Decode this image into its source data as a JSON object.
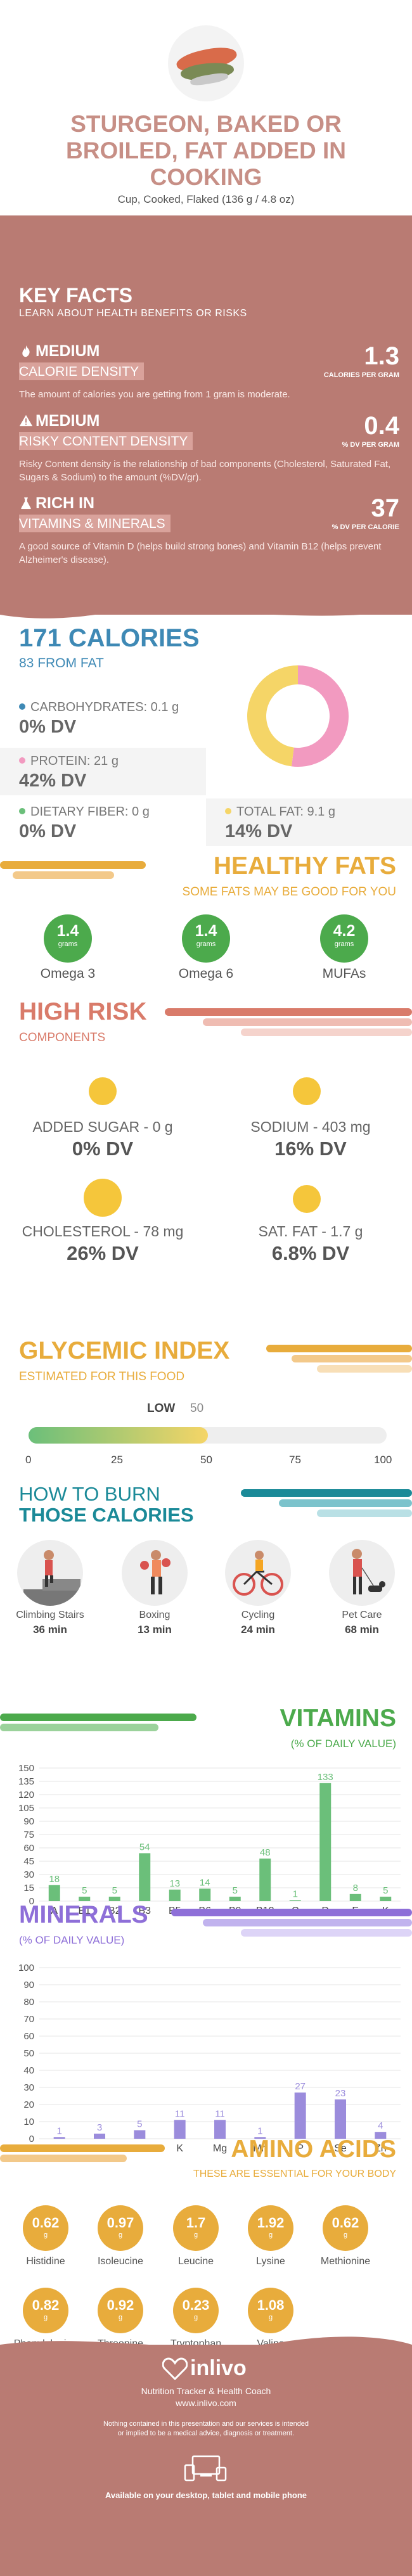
{
  "food": {
    "title": "STURGEON, BAKED OR BROILED, FAT ADDED IN COOKING",
    "serving": "Cup, Cooked, Flaked (136 g / 4.8 oz)"
  },
  "key_facts": {
    "title": "KEY FACTS",
    "subtitle": "LEARN ABOUT HEALTH BENEFITS OR RISKS",
    "items": [
      {
        "level": "MEDIUM",
        "label": "CALORIE DENSITY",
        "value": "1.3",
        "unit": "CALORIES PER GRAM",
        "description": "The amount of calories you are getting from 1 gram is moderate.",
        "icon": "flame-icon"
      },
      {
        "level": "MEDIUM",
        "label": "RISKY CONTENT DENSITY",
        "value": "0.4",
        "unit": "% DV PER GRAM",
        "description": "Risky Content density is the relationship of bad components (Cholesterol, Saturated Fat, Sugars & Sodium) to the amount (%DV/gr).",
        "icon": "warning-icon"
      },
      {
        "level": "RICH  IN",
        "label": "VITAMINS & MINERALS",
        "value": "37",
        "unit": "% DV PER CALORIE",
        "description": "A good source of Vitamin D (helps build strong bones) and Vitamin B12 (helps prevent Alzheimer's disease).",
        "icon": "flask-icon"
      }
    ]
  },
  "calories": {
    "title": "171 CALORIES",
    "from_fat": "83 FROM FAT",
    "macros": [
      {
        "label": "CARBOHYDRATES: 0.1 g",
        "dv": "0% DV",
        "color": "#3e89b5",
        "fraction": 0.0
      },
      {
        "label": "PROTEIN: 21 g",
        "dv": "42% DV",
        "color": "#f29ac0",
        "fraction": 0.52
      },
      {
        "label": "DIETARY FIBER: 0 g",
        "dv": "0% DV",
        "color": "#6bbf7a",
        "fraction": 0.0
      },
      {
        "label": "TOTAL FAT: 9.1 g",
        "dv": "14% DV",
        "color": "#f5d567",
        "fraction": 0.48
      }
    ]
  },
  "healthy_fats": {
    "title": "HEALTHY FATS",
    "subtitle": "SOME FATS MAY BE GOOD FOR YOU",
    "items": [
      {
        "value": "1.4",
        "unit": "grams",
        "name": "Omega 3"
      },
      {
        "value": "1.4",
        "unit": "grams",
        "name": "Omega 6"
      },
      {
        "value": "4.2",
        "unit": "grams",
        "name": "MUFAs"
      }
    ]
  },
  "high_risk": {
    "title": "HIGH RISK",
    "subtitle": "COMPONENTS",
    "items": [
      {
        "label": "ADDED SUGAR - 0 g",
        "dv": "0% DV"
      },
      {
        "label": "SODIUM - 403 mg",
        "dv": "16% DV"
      },
      {
        "label": "CHOLESTEROL - 78 mg",
        "dv": "26% DV"
      },
      {
        "label": "SAT. FAT - 1.7 g",
        "dv": "6.8% DV"
      }
    ]
  },
  "glycemic": {
    "title": "GLYCEMIC INDEX",
    "subtitle": "ESTIMATED FOR THIS FOOD",
    "level_label": "LOW",
    "value": "50",
    "fraction": 0.5,
    "ticks": [
      "0",
      "25",
      "50",
      "75",
      "100"
    ]
  },
  "burn": {
    "title_line1": "HOW TO BURN",
    "title_line2": "THOSE CALORIES",
    "activities": [
      {
        "name": "Climbing Stairs",
        "minutes": "36 min"
      },
      {
        "name": "Boxing",
        "minutes": "13 min"
      },
      {
        "name": "Cycling",
        "minutes": "24 min"
      },
      {
        "name": "Pet Care",
        "minutes": "68 min"
      }
    ]
  },
  "vitamins_chart": {
    "title": "VITAMINS",
    "subtitle": "(% OF DAILY VALUE)"
  },
  "minerals_chart": {
    "title": "MINERALS",
    "subtitle": "(% OF DAILY VALUE)"
  },
  "chart_data": [
    {
      "type": "bar",
      "title": "VITAMINS",
      "subtitle": "(% OF DAILY VALUE)",
      "categories": [
        "A",
        "B1",
        "B2",
        "B3",
        "B5",
        "B6",
        "B9",
        "B12",
        "C",
        "D",
        "E",
        "K"
      ],
      "values": [
        18,
        5,
        5,
        54,
        13,
        14,
        5,
        48,
        1,
        133,
        8,
        5
      ],
      "ylim": [
        0,
        150
      ],
      "yticks": [
        "0",
        "15",
        "30",
        "45",
        "60",
        "75",
        "90",
        "105",
        "120",
        "135",
        "150"
      ],
      "grid": true,
      "color": "#6bbf7a"
    },
    {
      "type": "bar",
      "title": "MINERALS",
      "subtitle": "(% OF DAILY VALUE)",
      "categories": [
        "Ca",
        "Cu",
        "Fe",
        "K",
        "Mg",
        "Mn",
        "P",
        "Se",
        "Zn"
      ],
      "values": [
        1,
        3,
        5,
        11,
        11,
        1,
        27,
        23,
        4
      ],
      "ylim": [
        0,
        100
      ],
      "yticks": [
        "0",
        "10",
        "20",
        "30",
        "40",
        "50",
        "60",
        "70",
        "80",
        "90",
        "100"
      ],
      "grid": true,
      "color": "#9b8cdc"
    }
  ],
  "amino": {
    "title": "AMINO ACIDS",
    "subtitle": "THESE ARE ESSENTIAL FOR YOUR BODY",
    "unit": "g",
    "items": [
      {
        "value": "0.62",
        "name": "Histidine"
      },
      {
        "value": "0.97",
        "name": "Isoleucine"
      },
      {
        "value": "1.7",
        "name": "Leucine"
      },
      {
        "value": "1.92",
        "name": "Lysine"
      },
      {
        "value": "0.62",
        "name": "Methionine"
      },
      {
        "value": "0.82",
        "name": "Phenylalanine"
      },
      {
        "value": "0.92",
        "name": "Threonine"
      },
      {
        "value": "0.23",
        "name": "Tryptophan"
      },
      {
        "value": "1.08",
        "name": "Valine"
      }
    ]
  },
  "footer": {
    "brand": "inlivo",
    "tagline": "Nutrition Tracker & Health Coach",
    "url": "www.inlivo.com",
    "disclaimer": "Nothing contained in this presentation and our services is intended or implied to be a medical advice, diagnosis or treatment.",
    "available": "Available on your desktop, tablet and mobile phone"
  },
  "colors": {
    "rose": "#b97b73",
    "blue": "#3e89b5",
    "green": "#4caa4c",
    "orange": "#e8ac3c",
    "purple": "#8e6fd8",
    "salmon": "#d97b6a"
  }
}
